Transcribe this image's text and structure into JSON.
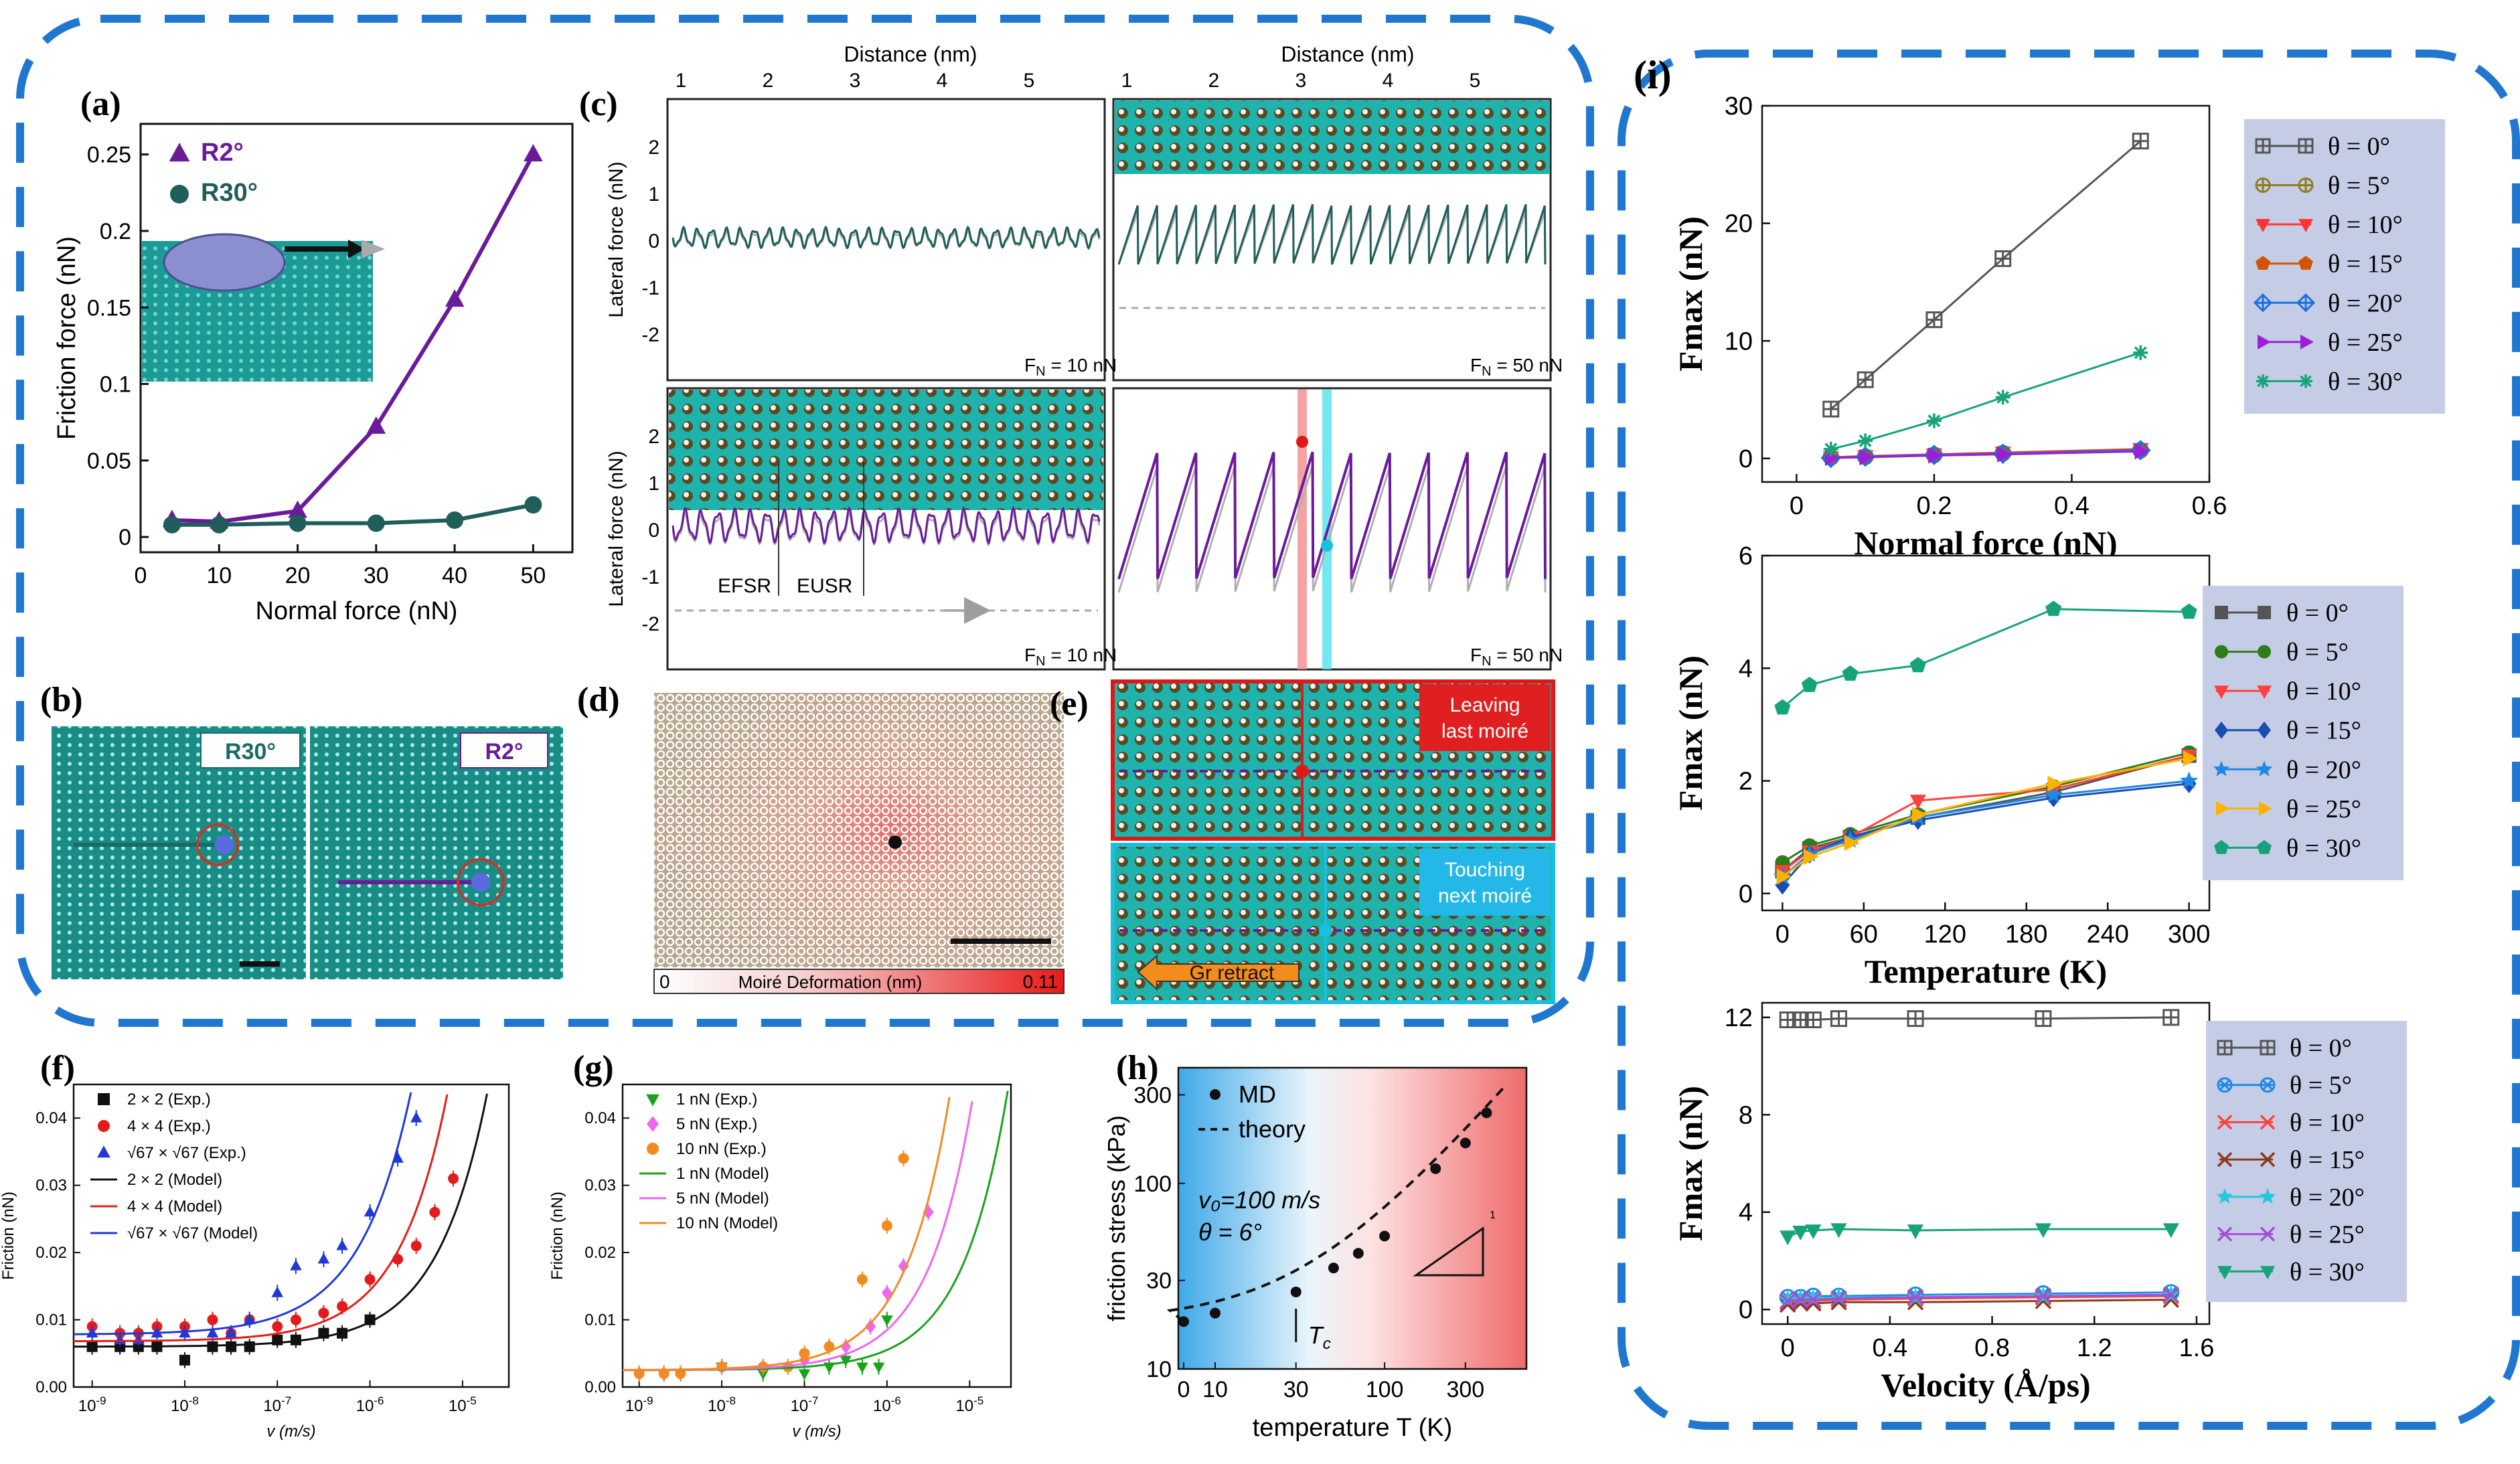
{
  "panels": {
    "a": {
      "label": "(a)"
    },
    "b": {
      "label": "(b)",
      "left_tag": "R30°",
      "right_tag": "R2°"
    },
    "c": {
      "label": "(c)",
      "xlabel": "Distance (nm)",
      "ylabel_top": "Lateral force (nN)",
      "ylabel_bottom": "Lateral force (nN)",
      "xticks": [
        "1",
        "2",
        "3",
        "4",
        "5"
      ],
      "yticks": [
        "2",
        "1",
        "0",
        "-1",
        "-2"
      ],
      "fn_tl": "F",
      "fn_tl_val": " = 10 nN",
      "fn_tr_val": " = 50 nN",
      "fn_bl_val": " = 10 nN",
      "fn_br_val": " = 50 nN",
      "fn_sub": "N",
      "efsr": "EFSR",
      "eusr": "EUSR"
    },
    "d": {
      "label": "(d)",
      "colorbar_min": "0",
      "colorbar_label": "Moiré Deformation  (nm)",
      "colorbar_max": "0.11"
    },
    "e": {
      "label": "(e)",
      "tag_top": "Leaving last moiré",
      "tag_top_1": "Leaving",
      "tag_top_2": "last moiré",
      "tag_bottom_1": "Touching",
      "tag_bottom_2": "next moiré",
      "arrow_label": "Gr retract"
    },
    "f": {
      "label": "(f)"
    },
    "g": {
      "label": "(g)"
    },
    "h": {
      "label": "(h)",
      "legend_md": "MD",
      "legend_theory": "theory",
      "v0": "v₀=100 m/s",
      "theta": "θ = 6°",
      "tc": "T",
      "tc_sub": "c",
      "slope": "1"
    },
    "i": {
      "label": "(i)"
    }
  },
  "chart_data": [
    {
      "id": "a",
      "type": "line",
      "xlabel": "Normal force (nN)",
      "ylabel": "Friction force (nN)",
      "xlim": [
        0,
        55
      ],
      "ylim": [
        -0.01,
        0.27
      ],
      "xticks": [
        0,
        10,
        20,
        30,
        40,
        50
      ],
      "yticks": [
        0,
        0.05,
        0.1,
        0.15,
        0.2,
        0.25
      ],
      "ytick_labels": [
        "0",
        "0.05",
        "0.1",
        "0.15",
        "0.2",
        "0.25"
      ],
      "series": [
        {
          "name": "R2°",
          "color": "#6a1b9a",
          "marker": "triangle",
          "x": [
            4,
            10,
            20,
            30,
            40,
            50
          ],
          "y": [
            0.011,
            0.01,
            0.017,
            0.072,
            0.155,
            0.25
          ]
        },
        {
          "name": "R30°",
          "color": "#1f5e5b",
          "marker": "circle",
          "x": [
            4,
            10,
            20,
            30,
            40,
            50
          ],
          "y": [
            0.008,
            0.008,
            0.009,
            0.009,
            0.011,
            0.021
          ]
        }
      ]
    },
    {
      "id": "f",
      "type": "scatter",
      "xlabel": "v (m/s)",
      "ylabel": "Friction (nN)",
      "xlim_log": [
        -9.2,
        -4.5
      ],
      "ylim": [
        0,
        0.045
      ],
      "xtick_exp": [
        -9,
        -8,
        -7,
        -6,
        -5
      ],
      "yticks": [
        0,
        0.01,
        0.02,
        0.03,
        0.04
      ],
      "ytick_labels": [
        "0.00",
        "0.01",
        "0.02",
        "0.03",
        "0.04"
      ],
      "series": [
        {
          "name": "2 × 2 (Exp.)",
          "color": "#111111",
          "marker": "square",
          "logx": [
            -9,
            -8.7,
            -8.5,
            -8.3,
            -8,
            -7.7,
            -7.5,
            -7.3,
            -7,
            -6.8,
            -6.5,
            -6.3,
            -6
          ],
          "y": [
            0.006,
            0.006,
            0.006,
            0.006,
            0.004,
            0.006,
            0.006,
            0.006,
            0.007,
            0.007,
            0.008,
            0.008,
            0.01
          ]
        },
        {
          "name": "4 × 4 (Exp.)",
          "color": "#e51b1b",
          "marker": "circle",
          "logx": [
            -9,
            -8.7,
            -8.5,
            -8.3,
            -8,
            -7.7,
            -7.5,
            -7.3,
            -7,
            -6.8,
            -6.5,
            -6.3,
            -6,
            -5.7,
            -5.5,
            -5.3,
            -5.1
          ],
          "y": [
            0.009,
            0.008,
            0.008,
            0.009,
            0.009,
            0.01,
            0.008,
            0.01,
            0.009,
            0.01,
            0.011,
            0.012,
            0.016,
            0.019,
            0.021,
            0.026,
            0.031
          ]
        },
        {
          "name": "√67 × √67 (Exp.)",
          "color": "#1f39d6",
          "marker": "triangle",
          "logx": [
            -9,
            -8.7,
            -8.5,
            -8.3,
            -8,
            -7.7,
            -7.5,
            -7.3,
            -7,
            -6.8,
            -6.5,
            -6.3,
            -6,
            -5.7,
            -5.5
          ],
          "y": [
            0.008,
            0.007,
            0.007,
            0.008,
            0.008,
            0.008,
            0.008,
            0.01,
            0.014,
            0.018,
            0.019,
            0.021,
            0.026,
            0.034,
            0.04
          ]
        },
        {
          "name": "2 × 2 (Model)",
          "color": "#111111",
          "line": true,
          "a": 0.006,
          "b": 0.00058,
          "k": 0.8
        },
        {
          "name": "4 × 4 (Model)",
          "color": "#e51b1b",
          "line": true,
          "a": 0.0068,
          "b": 0.00115,
          "k": 0.82
        },
        {
          "name": "√67 × √67 (Model)",
          "color": "#1f39d6",
          "line": true,
          "a": 0.0078,
          "b": 0.0027,
          "k": 0.78
        }
      ]
    },
    {
      "id": "g",
      "type": "scatter",
      "xlabel": "v (m/s)",
      "ylabel": "Friction (nN)",
      "xlim_log": [
        -9.2,
        -4.5
      ],
      "ylim": [
        0,
        0.045
      ],
      "xtick_exp": [
        -9,
        -8,
        -7,
        -6,
        -5
      ],
      "yticks": [
        0,
        0.01,
        0.02,
        0.03,
        0.04
      ],
      "ytick_labels": [
        "0.00",
        "0.01",
        "0.02",
        "0.03",
        "0.04"
      ],
      "series": [
        {
          "name": "1 nN (Exp.)",
          "color": "#1aa31a",
          "marker": "triangle-down",
          "logx": [
            -9,
            -8.7,
            -8.5,
            -8,
            -7.5,
            -7,
            -6.7,
            -6.5,
            -6.3,
            -6.1,
            -6
          ],
          "y": [
            0.002,
            0.002,
            0.002,
            0.003,
            0.002,
            0.002,
            0.003,
            0.004,
            0.003,
            0.003,
            0.01
          ]
        },
        {
          "name": "5 nN (Exp.)",
          "color": "#ee66ee",
          "marker": "diamond",
          "logx": [
            -9,
            -8.7,
            -8.5,
            -8,
            -7.5,
            -7,
            -6.7,
            -6.5,
            -6.2,
            -6,
            -5.8,
            -5.5
          ],
          "y": [
            0.002,
            0.002,
            0.002,
            0.003,
            0.003,
            0.004,
            0.006,
            0.006,
            0.009,
            0.014,
            0.018,
            0.026
          ]
        },
        {
          "name": "10 nN (Exp.)",
          "color": "#f28a22",
          "marker": "circle",
          "logx": [
            -9,
            -8.7,
            -8.5,
            -8,
            -7.5,
            -7.2,
            -7,
            -6.7,
            -6.3,
            -6,
            -5.8
          ],
          "y": [
            0.002,
            0.002,
            0.002,
            0.003,
            0.003,
            0.003,
            0.005,
            0.006,
            0.016,
            0.024,
            0.034
          ]
        },
        {
          "name": "1 nN (Model)",
          "color": "#1aa31a",
          "line": true,
          "a": 0.0025,
          "b": 0.0005,
          "k": 0.78
        },
        {
          "name": "5 nN (Model)",
          "color": "#ee66ee",
          "line": true,
          "a": 0.0025,
          "b": 0.00095,
          "k": 0.8
        },
        {
          "name": "10 nN (Model)",
          "color": "#f28a22",
          "line": true,
          "a": 0.0025,
          "b": 0.0016,
          "k": 0.8
        }
      ]
    },
    {
      "id": "h",
      "type": "scatter",
      "xlabel": "temperature T (K)",
      "ylabel": "friction stress (kPa)",
      "xticks": [
        "0",
        "10",
        "30",
        "100",
        "300"
      ],
      "yticks": [
        "10",
        "30",
        "100",
        "300"
      ],
      "series": [
        {
          "name": "MD",
          "color": "#111111",
          "marker": "circle",
          "T": [
            0,
            10,
            30,
            50,
            70,
            100,
            200,
            300,
            400
          ],
          "y": [
            18,
            20,
            26,
            35,
            42,
            52,
            120,
            165,
            240
          ]
        },
        {
          "name": "theory",
          "color": "#111111",
          "line": "dashed"
        }
      ]
    },
    {
      "id": "i1",
      "type": "line",
      "xlabel": "Normal force (nN)",
      "ylabel": "Fmax (nN)",
      "xlim": [
        -0.05,
        0.6
      ],
      "ylim": [
        -2,
        30
      ],
      "xticks": [
        0,
        0.2,
        0.4,
        0.6
      ],
      "xtick_labels": [
        "0",
        "0.2",
        "0.4",
        "0.6"
      ],
      "yticks": [
        0,
        10,
        20,
        30
      ],
      "x": [
        0.05,
        0.1,
        0.2,
        0.3,
        0.5
      ],
      "series": [
        {
          "name": "θ = 0°",
          "color": "#555555",
          "marker": "sq-plus",
          "y": [
            4.2,
            6.7,
            11.8,
            17,
            27
          ]
        },
        {
          "name": "θ = 5°",
          "color": "#8c7d1e",
          "marker": "circle-plus",
          "y": [
            0.1,
            0.15,
            0.3,
            0.45,
            0.7
          ]
        },
        {
          "name": "θ = 10°",
          "color": "#ff3333",
          "marker": "tri-down",
          "y": [
            0.1,
            0.2,
            0.35,
            0.5,
            0.8
          ]
        },
        {
          "name": "θ = 15°",
          "color": "#d35400",
          "marker": "pentagon",
          "y": [
            0.1,
            0.2,
            0.3,
            0.45,
            0.75
          ]
        },
        {
          "name": "θ = 20°",
          "color": "#1e6fe0",
          "marker": "diamond-plus",
          "y": [
            0.05,
            0.15,
            0.3,
            0.4,
            0.7
          ]
        },
        {
          "name": "θ = 25°",
          "color": "#9b1fd6",
          "marker": "tri-right",
          "y": [
            0.05,
            0.1,
            0.25,
            0.35,
            0.6
          ]
        },
        {
          "name": "θ = 30°",
          "color": "#16a37a",
          "marker": "asterisk",
          "y": [
            0.8,
            1.5,
            3.2,
            5.2,
            9
          ]
        }
      ]
    },
    {
      "id": "i2",
      "type": "line",
      "xlabel": "Temperature (K)",
      "ylabel": "Fmax (nN)",
      "xlim": [
        -15,
        315
      ],
      "ylim": [
        -0.3,
        6
      ],
      "xticks": [
        0,
        60,
        120,
        180,
        240,
        300
      ],
      "yticks": [
        0,
        2,
        4,
        6
      ],
      "x": [
        0,
        20,
        50,
        100,
        200,
        300
      ],
      "series": [
        {
          "name": "θ = 0°",
          "color": "#555555",
          "marker": "square",
          "y": [
            0.4,
            0.8,
            1.0,
            1.35,
            1.8,
            2.45
          ]
        },
        {
          "name": "θ = 5°",
          "color": "#2e7d1a",
          "marker": "circle",
          "y": [
            0.55,
            0.85,
            1.05,
            1.4,
            1.9,
            2.5
          ]
        },
        {
          "name": "θ = 10°",
          "color": "#ff4040",
          "marker": "tri-down",
          "y": [
            0.4,
            0.75,
            1.0,
            1.65,
            1.85,
            2.45
          ]
        },
        {
          "name": "θ = 15°",
          "color": "#1a4db3",
          "marker": "diamond",
          "y": [
            0.15,
            0.7,
            1.0,
            1.3,
            1.7,
            1.95
          ]
        },
        {
          "name": "θ = 20°",
          "color": "#1e88e5",
          "marker": "star",
          "y": [
            0.3,
            0.7,
            0.95,
            1.35,
            1.75,
            2.0
          ]
        },
        {
          "name": "θ = 25°",
          "color": "#ffb300",
          "marker": "tri-right",
          "y": [
            0.3,
            0.65,
            0.9,
            1.4,
            1.95,
            2.4
          ]
        },
        {
          "name": "θ = 30°",
          "color": "#16a37a",
          "marker": "pentagon",
          "y": [
            3.3,
            3.7,
            3.9,
            4.05,
            5.05,
            5.0
          ]
        }
      ]
    },
    {
      "id": "i3",
      "type": "line",
      "xlabel": "Velocity (Å/ps)",
      "ylabel": "Fmax (nN)",
      "xlim": [
        -0.1,
        1.65
      ],
      "ylim": [
        -0.6,
        12.6
      ],
      "xticks": [
        0,
        0.4,
        0.8,
        1.2,
        1.6
      ],
      "xtick_labels": [
        "0",
        "0.4",
        "0.8",
        "1.2",
        "1.6"
      ],
      "yticks": [
        0,
        4,
        8,
        12
      ],
      "x": [
        0.0,
        0.05,
        0.1,
        0.2,
        0.5,
        1.0,
        1.5
      ],
      "series": [
        {
          "name": "θ = 0°",
          "color": "#555555",
          "marker": "sq-plus",
          "y": [
            11.9,
            11.9,
            11.9,
            11.95,
            11.95,
            11.95,
            12.0
          ]
        },
        {
          "name": "θ = 5°",
          "color": "#1e88e5",
          "marker": "circle-x",
          "y": [
            0.5,
            0.5,
            0.55,
            0.55,
            0.6,
            0.65,
            0.7
          ]
        },
        {
          "name": "θ = 10°",
          "color": "#ff4040",
          "marker": "x",
          "y": [
            0.3,
            0.35,
            0.35,
            0.4,
            0.45,
            0.5,
            0.55
          ]
        },
        {
          "name": "θ = 15°",
          "color": "#8b3a1a",
          "marker": "x",
          "y": [
            0.2,
            0.25,
            0.25,
            0.3,
            0.3,
            0.35,
            0.4
          ]
        },
        {
          "name": "θ = 20°",
          "color": "#26c6da",
          "marker": "star",
          "y": [
            0.4,
            0.45,
            0.45,
            0.5,
            0.5,
            0.55,
            0.6
          ]
        },
        {
          "name": "θ = 25°",
          "color": "#a64dd6",
          "marker": "x",
          "y": [
            0.35,
            0.4,
            0.4,
            0.45,
            0.5,
            0.55,
            0.6
          ]
        },
        {
          "name": "θ = 30°",
          "color": "#16a37a",
          "marker": "tri-down",
          "y": [
            3.0,
            3.2,
            3.25,
            3.3,
            3.25,
            3.3,
            3.3
          ]
        }
      ]
    }
  ]
}
